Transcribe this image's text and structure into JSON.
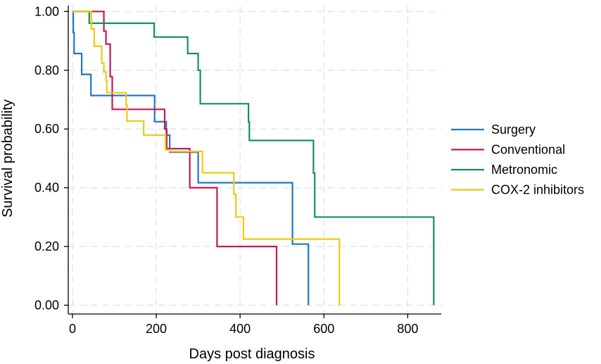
{
  "chart_data": {
    "type": "line",
    "step": true,
    "title": "",
    "xlabel": "Days post diagnosis",
    "ylabel": "Survival probability",
    "xlim": [
      -10,
      880
    ],
    "ylim": [
      -0.03,
      1.02
    ],
    "x_ticks": [
      0,
      200,
      400,
      600,
      800
    ],
    "x_tick_labels": [
      "0",
      "200",
      "400",
      "600",
      "800"
    ],
    "y_ticks": [
      0,
      0.2,
      0.4,
      0.6,
      0.8,
      1.0
    ],
    "y_tick_labels": [
      "0.00",
      "0.20",
      "0.40",
      "0.60",
      "0.80",
      "1.00"
    ],
    "grid": true,
    "legend_position": "right",
    "series": [
      {
        "name": "Surgery",
        "color": "#1f77c2",
        "points": [
          [
            0,
            1.0
          ],
          [
            2,
            0.929
          ],
          [
            4,
            0.857
          ],
          [
            22,
            0.786
          ],
          [
            44,
            0.714
          ],
          [
            196,
            0.625
          ],
          [
            220,
            0.625
          ],
          [
            224,
            0.5795
          ],
          [
            232,
            0.521
          ],
          [
            300,
            0.417
          ],
          [
            525,
            0.208
          ],
          [
            563,
            0.208
          ],
          [
            563,
            0.0
          ]
        ]
      },
      {
        "name": "Conventional",
        "color": "#c2185b",
        "points": [
          [
            0,
            1.0
          ],
          [
            75,
            0.933
          ],
          [
            80,
            0.889
          ],
          [
            90,
            0.778
          ],
          [
            95,
            0.667
          ],
          [
            220,
            0.6
          ],
          [
            225,
            0.533
          ],
          [
            280,
            0.4
          ],
          [
            345,
            0.2
          ],
          [
            487,
            0.2
          ],
          [
            487,
            0.0
          ]
        ]
      },
      {
        "name": "Metronomic",
        "color": "#109060",
        "points": [
          [
            0,
            1.0
          ],
          [
            40,
            0.96
          ],
          [
            195,
            0.913
          ],
          [
            275,
            0.857
          ],
          [
            300,
            0.8
          ],
          [
            305,
            0.686
          ],
          [
            420,
            0.624
          ],
          [
            422,
            0.561
          ],
          [
            575,
            0.45
          ],
          [
            578,
            0.3
          ],
          [
            862,
            0.3
          ],
          [
            862,
            0.0
          ]
        ]
      },
      {
        "name": "COX-2 inhibitors",
        "color": "#f2c811",
        "points": [
          [
            0,
            1.0
          ],
          [
            45,
            0.941
          ],
          [
            52,
            0.882
          ],
          [
            70,
            0.824
          ],
          [
            75,
            0.794
          ],
          [
            80,
            0.765
          ],
          [
            82,
            0.7235
          ],
          [
            128,
            0.682
          ],
          [
            130,
            0.627
          ],
          [
            170,
            0.5795
          ],
          [
            222,
            0.529
          ],
          [
            232,
            0.5235
          ],
          [
            310,
            0.451
          ],
          [
            385,
            0.378
          ],
          [
            390,
            0.3
          ],
          [
            408,
            0.225
          ],
          [
            637,
            0.225
          ],
          [
            637,
            0.0
          ]
        ]
      }
    ]
  }
}
